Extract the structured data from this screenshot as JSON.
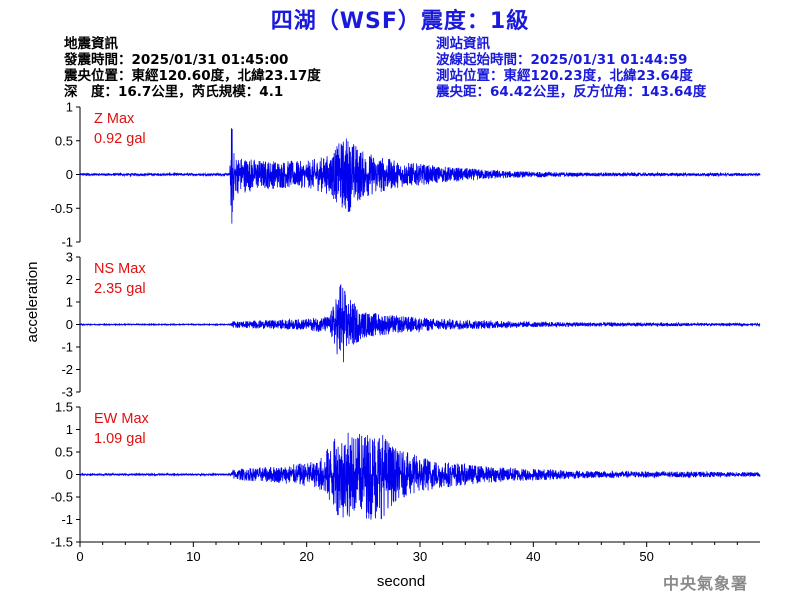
{
  "title": "四湖（WSF）震度：1級",
  "quake_info": {
    "heading": "地震資訊",
    "origin_time": "發震時間：2025/01/31 01:45:00",
    "epicenter": "震央位置：東經120.60度，北緯23.17度",
    "depth_magnitude": "深　度：16.7公里，芮氏規模：4.1"
  },
  "station_info": {
    "heading": "測站資訊",
    "wave_start": "波線起始時間：2025/01/31 01:44:59",
    "station_location": "測站位置：東經120.23度，北緯23.64度",
    "distance_azimuth": "震央距：64.42公里，反方位角：143.64度"
  },
  "footer": "中央氣象署",
  "colors": {
    "title": "#1a1adc",
    "trace": "#0000ee",
    "max_label": "#e01010",
    "axis": "#000000"
  },
  "chart_data": {
    "type": "line",
    "xlabel": "second",
    "ylabel": "acceleration",
    "xlim": [
      0,
      60
    ],
    "xticks": [
      0,
      10,
      20,
      30,
      40,
      50
    ],
    "grid": false,
    "series": [
      {
        "name": "Z",
        "max_label": "Z Max",
        "max_value": "0.92 gal",
        "ylim": [
          -1,
          1
        ],
        "yticks": [
          "1",
          "0.5",
          "0",
          "-0.5",
          "-1"
        ],
        "envelope": [
          [
            0,
            0.02
          ],
          [
            13.2,
            0.02
          ],
          [
            13.4,
            0.92
          ],
          [
            13.6,
            0.3
          ],
          [
            16,
            0.22
          ],
          [
            20,
            0.2
          ],
          [
            22,
            0.3
          ],
          [
            23.5,
            0.6
          ],
          [
            25,
            0.35
          ],
          [
            28,
            0.2
          ],
          [
            32,
            0.12
          ],
          [
            38,
            0.05
          ],
          [
            44,
            0.03
          ],
          [
            60,
            0.02
          ]
        ]
      },
      {
        "name": "NS",
        "max_label": "NS Max",
        "max_value": "2.35 gal",
        "ylim": [
          -3,
          3
        ],
        "yticks": [
          "3",
          "2",
          "1",
          "0",
          "-1",
          "-2",
          "-3"
        ],
        "envelope": [
          [
            0,
            0.02
          ],
          [
            13.3,
            0.02
          ],
          [
            13.5,
            0.15
          ],
          [
            20,
            0.25
          ],
          [
            22,
            0.4
          ],
          [
            22.8,
            1.5
          ],
          [
            23,
            2.35
          ],
          [
            23.5,
            1.3
          ],
          [
            25,
            0.6
          ],
          [
            28,
            0.4
          ],
          [
            32,
            0.25
          ],
          [
            40,
            0.12
          ],
          [
            50,
            0.08
          ],
          [
            60,
            0.05
          ]
        ]
      },
      {
        "name": "EW",
        "max_label": "EW Max",
        "max_value": "1.09 gal",
        "ylim": [
          -1.5,
          1.5
        ],
        "yticks": [
          "1.5",
          "1",
          "0.5",
          "0",
          "-0.5",
          "-1",
          "-1.5"
        ],
        "envelope": [
          [
            0,
            0.02
          ],
          [
            13.3,
            0.02
          ],
          [
            13.5,
            0.12
          ],
          [
            18,
            0.2
          ],
          [
            21,
            0.3
          ],
          [
            23,
            1.0
          ],
          [
            24.5,
            0.9
          ],
          [
            26.3,
            1.09
          ],
          [
            28,
            0.55
          ],
          [
            32,
            0.3
          ],
          [
            36,
            0.18
          ],
          [
            45,
            0.08
          ],
          [
            60,
            0.05
          ]
        ]
      }
    ]
  }
}
